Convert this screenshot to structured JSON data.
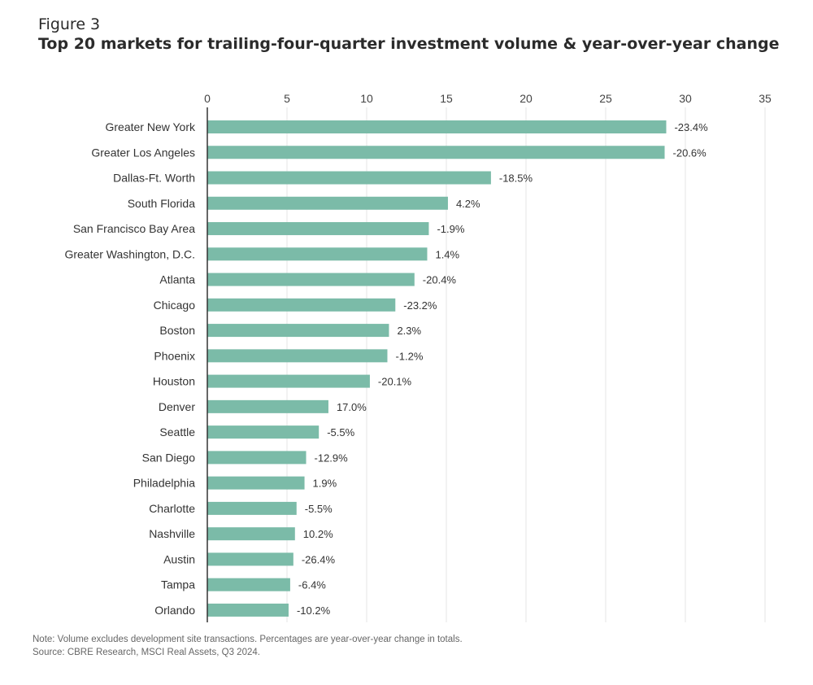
{
  "figure_label": "Figure 3",
  "title": "Top 20 markets for trailing-four-quarter investment volume & year-over-year change",
  "note": "Note: Volume excludes development site transactions. Percentages are year-over-year change in totals.",
  "source": "Source: CBRE Research, MSCI Real Assets, Q3 2024.",
  "colors": {
    "bar": "#7bbba8",
    "grid": "#e6e6e6",
    "axis": "#333333"
  },
  "chart_data": {
    "type": "bar",
    "orientation": "horizontal",
    "title": "Top 20 markets for trailing-four-quarter investment volume & year-over-year change",
    "xlim": [
      0,
      35
    ],
    "xticks": [
      0,
      5,
      10,
      15,
      20,
      25,
      30,
      35
    ],
    "x_axis_position": "top",
    "grid": true,
    "categories": [
      "Greater New York",
      "Greater Los Angeles",
      "Dallas-Ft. Worth",
      "South Florida",
      "San Francisco Bay Area",
      "Greater Washington, D.C.",
      "Atlanta",
      "Chicago",
      "Boston",
      "Phoenix",
      "Houston",
      "Denver",
      "Seattle",
      "San Diego",
      "Philadelphia",
      "Charlotte",
      "Nashville",
      "Austin",
      "Tampa",
      "Orlando"
    ],
    "values": [
      28.8,
      28.7,
      17.8,
      15.1,
      13.9,
      13.8,
      13.0,
      11.8,
      11.4,
      11.3,
      10.2,
      7.6,
      7.0,
      6.2,
      6.1,
      5.6,
      5.5,
      5.4,
      5.2,
      5.1
    ],
    "data_labels": [
      "-23.4%",
      "-20.6%",
      "-18.5%",
      "4.2%",
      "-1.9%",
      "1.4%",
      "-20.4%",
      "-23.2%",
      "2.3%",
      "-1.2%",
      "-20.1%",
      "17.0%",
      "-5.5%",
      "-12.9%",
      "1.9%",
      "-5.5%",
      "10.2%",
      "-26.4%",
      "-6.4%",
      "-10.2%"
    ]
  }
}
